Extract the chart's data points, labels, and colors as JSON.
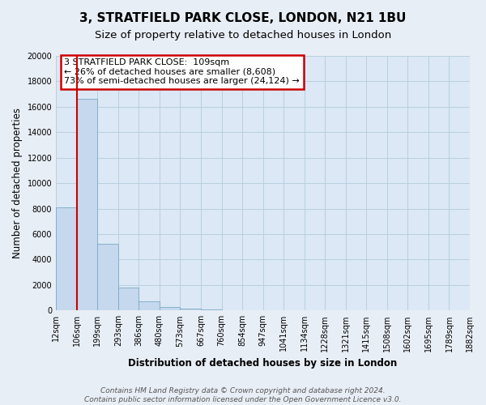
{
  "title": "3, STRATFIELD PARK CLOSE, LONDON, N21 1BU",
  "subtitle": "Size of property relative to detached houses in London",
  "xlabel": "Distribution of detached houses by size in London",
  "ylabel": "Number of detached properties",
  "bar_values": [
    8100,
    16600,
    5250,
    1800,
    750,
    260,
    130,
    100,
    0,
    0,
    0,
    0,
    0,
    0,
    0,
    0,
    0,
    0,
    0,
    0
  ],
  "categories": [
    "12sqm",
    "106sqm",
    "199sqm",
    "293sqm",
    "386sqm",
    "480sqm",
    "573sqm",
    "667sqm",
    "760sqm",
    "854sqm",
    "947sqm",
    "1041sqm",
    "1134sqm",
    "1228sqm",
    "1321sqm",
    "1415sqm",
    "1508sqm",
    "1602sqm",
    "1695sqm",
    "1789sqm",
    "1882sqm"
  ],
  "bar_color": "#c5d8ed",
  "bar_edge_color": "#7aaac8",
  "vline_color": "#cc0000",
  "ylim": [
    0,
    20000
  ],
  "yticks": [
    0,
    2000,
    4000,
    6000,
    8000,
    10000,
    12000,
    14000,
    16000,
    18000,
    20000
  ],
  "annotation_title": "3 STRATFIELD PARK CLOSE:  109sqm",
  "annotation_line1": "← 26% of detached houses are smaller (8,608)",
  "annotation_line2": "73% of semi-detached houses are larger (24,124) →",
  "annotation_box_color": "#ffffff",
  "annotation_box_edge": "#cc0000",
  "footer_line1": "Contains HM Land Registry data © Crown copyright and database right 2024.",
  "footer_line2": "Contains public sector information licensed under the Open Government Licence v3.0.",
  "background_color": "#e8eef5",
  "plot_bg_color": "#dce8f5",
  "grid_color": "#b8cfe0",
  "title_fontsize": 11,
  "subtitle_fontsize": 9.5,
  "axis_label_fontsize": 8.5,
  "tick_fontsize": 7,
  "footer_fontsize": 6.5,
  "annotation_fontsize": 8
}
